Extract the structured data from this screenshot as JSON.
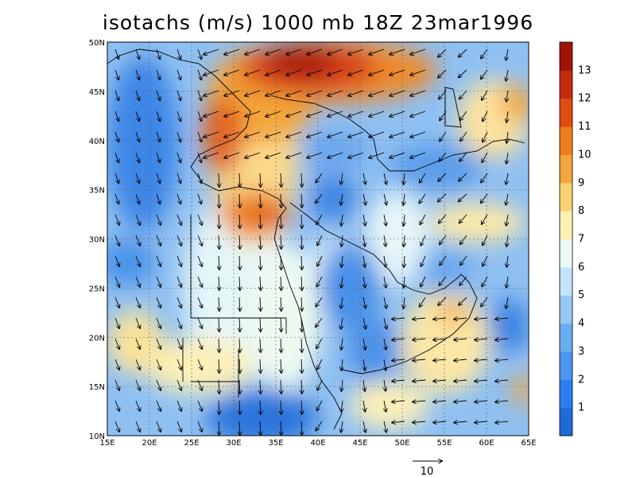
{
  "title": "isotachs (m/s) 1000 mb 18Z 23mar1996",
  "map": {
    "lon_range": [
      15,
      65
    ],
    "lat_range": [
      10,
      50
    ],
    "lat_ticks": [
      "10N",
      "15N",
      "20N",
      "25N",
      "30N",
      "35N",
      "40N",
      "45N",
      "50N"
    ],
    "lon_ticks": [
      "15E",
      "20E",
      "25E",
      "30E",
      "35E",
      "40E",
      "45E",
      "50E",
      "55E",
      "60E",
      "65E"
    ],
    "gridlines": true
  },
  "colorbar": {
    "labels": [
      "1",
      "2",
      "3",
      "4",
      "5",
      "6",
      "7",
      "8",
      "9",
      "10",
      "11",
      "12",
      "13"
    ],
    "colors": [
      "#1e6bd8",
      "#2a7ff0",
      "#4a95f0",
      "#6aaef2",
      "#96c8f6",
      "#c4e4f8",
      "#ecfaf6",
      "#fdf0b0",
      "#f8d170",
      "#f4a63a",
      "#ee7c1c",
      "#e04c12",
      "#c42a0c",
      "#a01406"
    ]
  },
  "reference_vector": {
    "label": "10"
  }
}
